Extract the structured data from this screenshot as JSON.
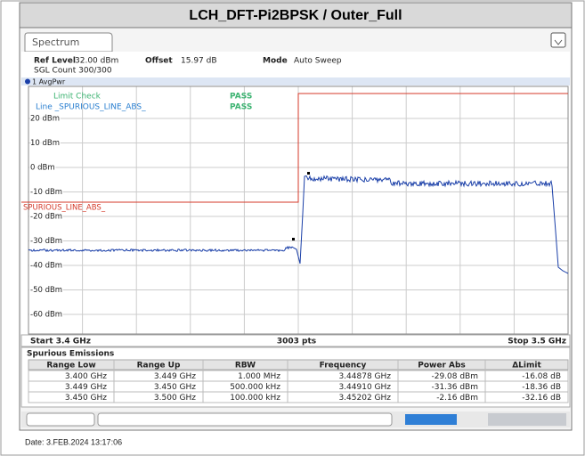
{
  "header": {
    "title": "LCH_DFT-Pi2BPSK / Outer_Full"
  },
  "tab": "Spectrum",
  "info": {
    "ref_level_label": "Ref Level",
    "ref_level": "32.00 dBm",
    "offset_label": "Offset",
    "offset": "15.97 dB",
    "mode_label": "Mode",
    "mode": "Auto Sweep",
    "sgl_count": "SGL Count 300/300"
  },
  "trace_label": "1 AvgPwr",
  "legend": [
    {
      "name": "Limit Check",
      "status": "PASS"
    },
    {
      "name": "Line _SPURIOUS_LINE_ABS_",
      "status": "PASS"
    }
  ],
  "y_labels": [
    "20 dBm",
    "10 dBm",
    "0 dBm",
    "-10 dBm",
    "-20 dBm",
    "-30 dBm",
    "-40 dBm",
    "-50 dBm",
    "-60 dBm"
  ],
  "limit_label": "SPURIOUS_LINE_ABS_",
  "footer": {
    "start": "Start 3.4 GHz",
    "points": "3003 pts",
    "stop": "Stop 3.5 GHz"
  },
  "table": {
    "title": "Spurious Emissions",
    "columns": [
      "Range Low",
      "Range Up",
      "RBW",
      "Frequency",
      "Power Abs",
      "ΔLimit"
    ],
    "rows": [
      [
        "3.400 GHz",
        "3.449 GHz",
        "1.000 MHz",
        "3.44878 GHz",
        "-29.08 dBm",
        "-16.08 dB"
      ],
      [
        "3.449 GHz",
        "3.450 GHz",
        "500.000 kHz",
        "3.44910 GHz",
        "-31.36 dBm",
        "-18.36 dB"
      ],
      [
        "3.450 GHz",
        "3.500 GHz",
        "100.000 kHz",
        "3.45202 GHz",
        "-2.16 dBm",
        "-32.16 dB"
      ]
    ]
  },
  "date": "Date: 3.FEB.2024  13:17:06"
}
